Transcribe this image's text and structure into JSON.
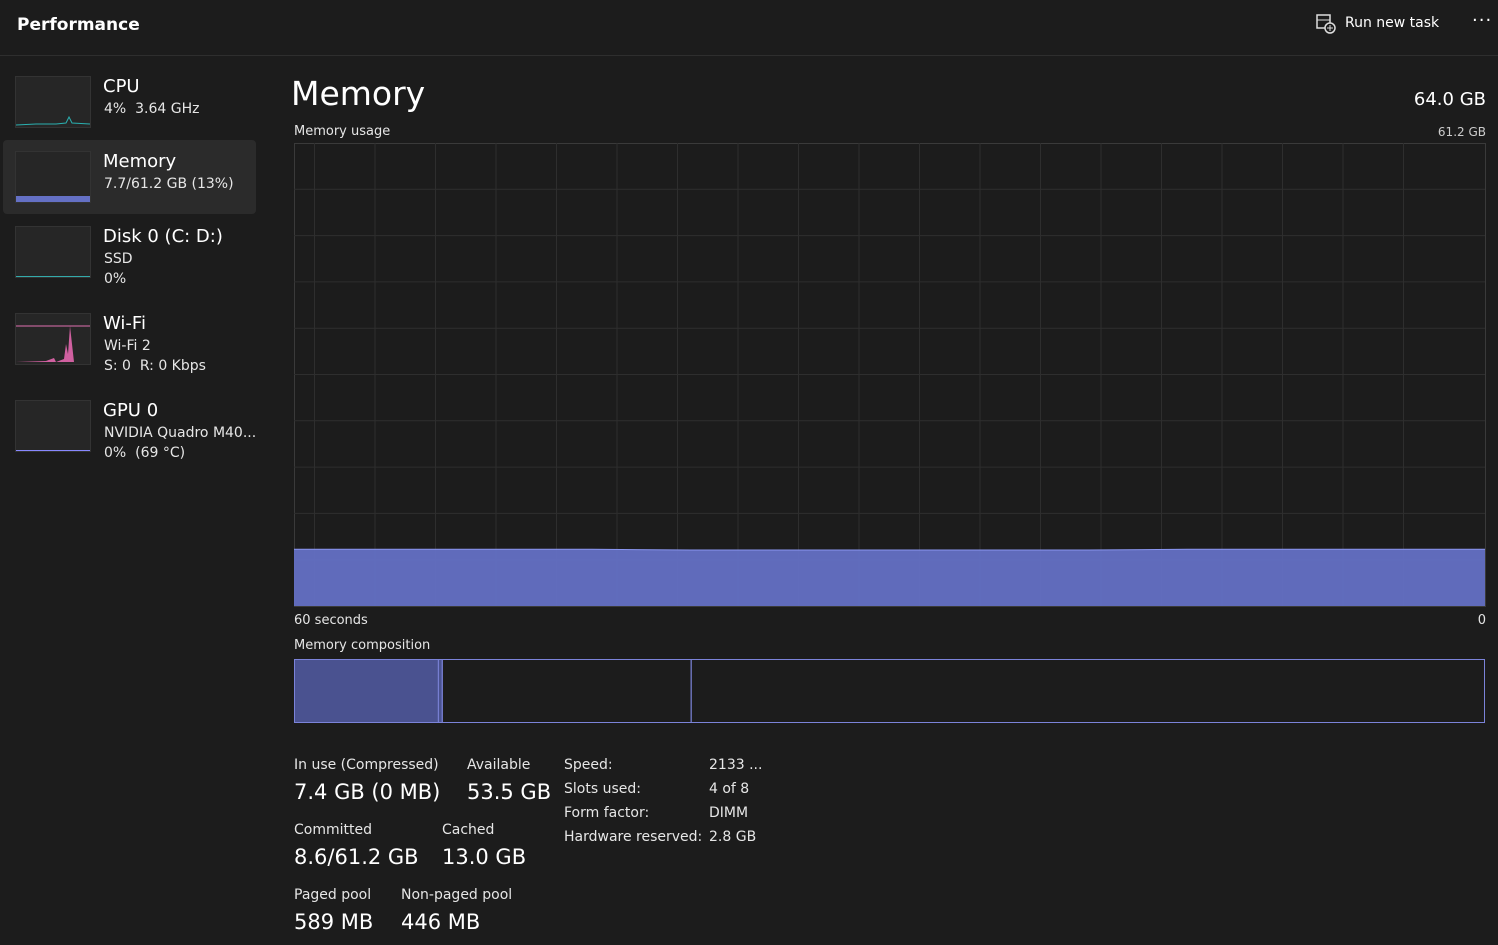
{
  "header": {
    "title": "Performance",
    "run_new_task": "Run new task"
  },
  "sidebar": [
    {
      "name": "CPU",
      "lines": [
        "4%  3.64 GHz"
      ]
    },
    {
      "name": "Memory",
      "lines": [
        "7.7/61.2 GB (13%)"
      ]
    },
    {
      "name": "Disk 0 (C: D:)",
      "lines": [
        "SSD",
        "0%"
      ]
    },
    {
      "name": "Wi-Fi",
      "lines": [
        "Wi-Fi 2",
        "S: 0  R: 0 Kbps"
      ]
    },
    {
      "name": "GPU 0",
      "lines": [
        "NVIDIA Quadro M40...",
        "0%  (69 °C)"
      ]
    }
  ],
  "main": {
    "title": "Memory",
    "total": "64.0 GB",
    "usage_label": "Memory usage",
    "usage_max": "61.2 GB",
    "time_start": "60 seconds",
    "time_end": "0",
    "usage_graph": {
      "ylim": [
        0,
        61.2
      ],
      "values": [
        7.5,
        7.5,
        7.5,
        7.5,
        7.4,
        7.4,
        7.4,
        7.4,
        7.4,
        7.5,
        7.5,
        7.5,
        7.5
      ]
    },
    "composition_label": "Memory composition",
    "composition": [
      7.4,
      0.2,
      12.8,
      40.8
    ],
    "stats": [
      {
        "label": "In use (Compressed)",
        "value": "7.4 GB (0 MB)"
      },
      {
        "label": "Available",
        "value": "53.5 GB"
      },
      {
        "label": "Committed",
        "value": "8.6/61.2 GB"
      },
      {
        "label": "Cached",
        "value": "13.0 GB"
      },
      {
        "label": "Paged pool",
        "value": "589 MB"
      },
      {
        "label": "Non-paged pool",
        "value": "446 MB"
      }
    ],
    "details": [
      [
        "Speed:",
        "2133 ..."
      ],
      [
        "Slots used:",
        "4 of 8"
      ],
      [
        "Form factor:",
        "DIMM"
      ],
      [
        "Hardware reserved:",
        "2.8 GB"
      ]
    ]
  }
}
